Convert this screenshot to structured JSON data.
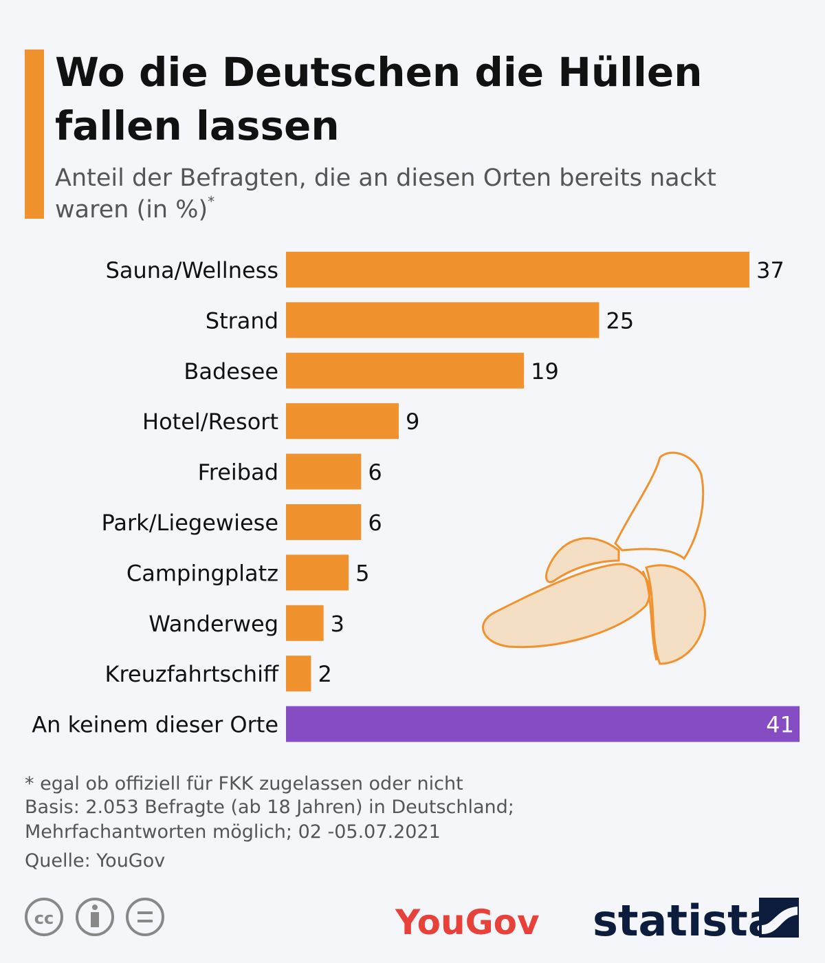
{
  "chart_data": {
    "type": "bar",
    "orientation": "horizontal",
    "title": [
      "Wo die Deutschen die Hüllen",
      "fallen lassen"
    ],
    "subtitle": [
      "Anteil der Befragten, die an diesen Orten bereits nackt",
      "waren (in %)"
    ],
    "subtitle_mark": "*",
    "categories": [
      "Sauna/Wellness",
      "Strand",
      "Badesee",
      "Hotel/Resort",
      "Freibad",
      "Park/Liegewiese",
      "Campingplatz",
      "Wanderweg",
      "Kreuzfahrtschiff",
      "An keinem dieser Orte"
    ],
    "values": [
      37,
      25,
      19,
      9,
      6,
      6,
      5,
      3,
      2,
      41
    ],
    "colors": [
      "#f0922e",
      "#f0922e",
      "#f0922e",
      "#f0922e",
      "#f0922e",
      "#f0922e",
      "#f0922e",
      "#f0922e",
      "#f0922e",
      "#864cc4"
    ],
    "value_label_positions": [
      "outside",
      "outside",
      "outside",
      "outside",
      "outside",
      "outside",
      "outside",
      "outside",
      "outside",
      "inside"
    ],
    "notes": [
      "* egal ob offiziell für FKK zugelassen oder nicht",
      "Basis: 2.053 Befragte (ab 18 Jahren) in Deutschland;",
      "Mehrfachantworten möglich; 02 -05.07.2021",
      "Quelle: YouGov"
    ],
    "logos": [
      "YouGov",
      "statista"
    ]
  }
}
